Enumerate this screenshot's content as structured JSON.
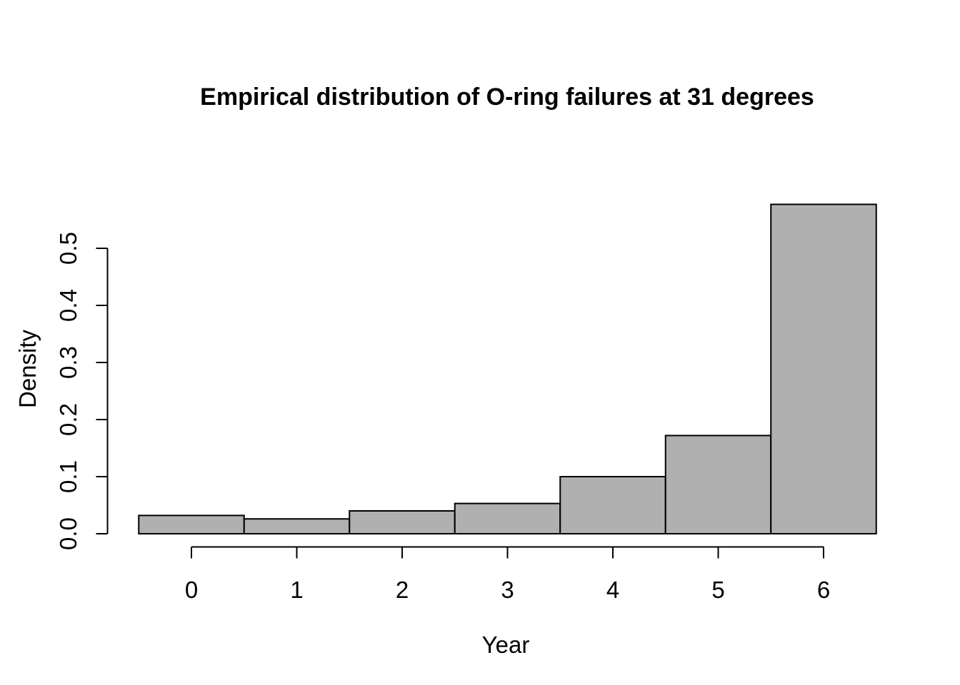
{
  "page": {
    "background": "#ffffff"
  },
  "chart_data": {
    "type": "bar",
    "subtype": "histogram",
    "title": "Empirical distribution of O-ring failures at 31 degrees",
    "xlabel": "Year",
    "ylabel": "Density",
    "categories": [
      0,
      1,
      2,
      3,
      4,
      5,
      6
    ],
    "values": [
      0.032,
      0.026,
      0.04,
      0.053,
      0.1,
      0.172,
      0.577
    ],
    "bar_width": 1,
    "xlim": [
      -0.5,
      6.5
    ],
    "ylim": [
      0,
      0.58
    ],
    "xticks": [
      "0",
      "1",
      "2",
      "3",
      "4",
      "5",
      "6"
    ],
    "yticks": [
      "0.0",
      "0.1",
      "0.2",
      "0.3",
      "0.4",
      "0.5"
    ],
    "grid": false,
    "legend_position": "none",
    "colors": {
      "bar_fill": "#b0b0b0",
      "bar_stroke": "#000000",
      "axis": "#000000",
      "text": "#000000"
    }
  }
}
